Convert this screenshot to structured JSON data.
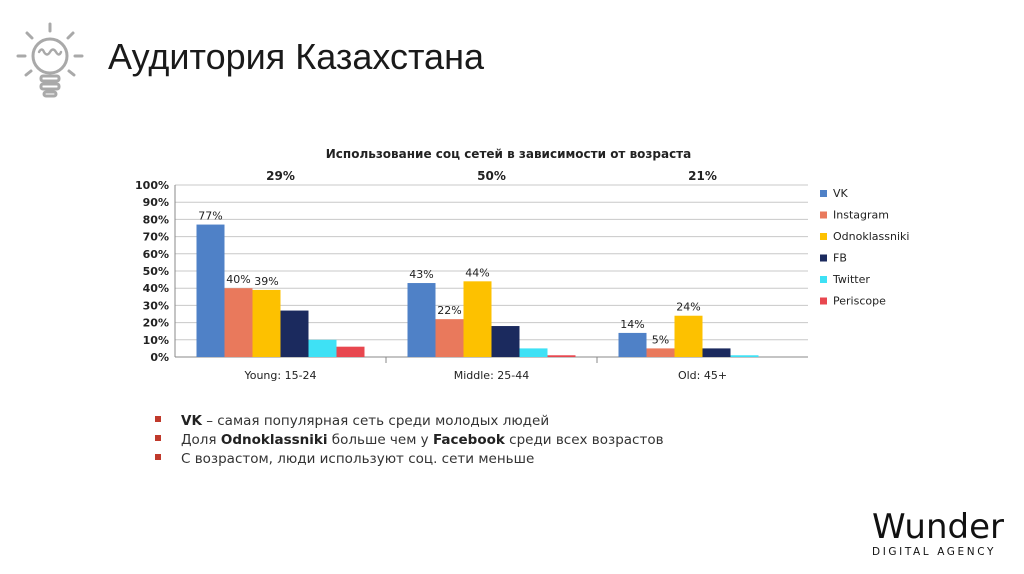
{
  "slide": {
    "title": "Аудитория Казахстана",
    "brand_name": "Wunder",
    "brand_sub": "DIGITAL AGENCY"
  },
  "chart_data": {
    "type": "bar",
    "title": "Использование соц сетей в зависимости от возраста",
    "categories": [
      "Young: 15-24",
      "Middle: 25-44",
      "Old: 45+"
    ],
    "group_share": [
      "29%",
      "50%",
      "21%"
    ],
    "series": [
      {
        "name": "VK",
        "color": "#4f81c7",
        "values": [
          77,
          43,
          14
        ],
        "labels": [
          "77%",
          "43%",
          "14%"
        ]
      },
      {
        "name": "Instagram",
        "color": "#e9795c",
        "values": [
          40,
          22,
          5
        ],
        "labels": [
          "40%",
          "22%",
          "5%"
        ]
      },
      {
        "name": "Odnoklassniki",
        "color": "#fdc100",
        "values": [
          39,
          44,
          24
        ],
        "labels": [
          "39%",
          "44%",
          "24%"
        ]
      },
      {
        "name": "FB",
        "color": "#1b2a5e",
        "values": [
          27,
          18,
          5
        ],
        "labels": [
          "",
          "",
          ""
        ]
      },
      {
        "name": "Twitter",
        "color": "#3ee1f5",
        "values": [
          10,
          5,
          1
        ],
        "labels": [
          "",
          "",
          ""
        ]
      },
      {
        "name": "Periscope",
        "color": "#e8474f",
        "values": [
          6,
          1,
          0
        ],
        "labels": [
          "",
          "",
          ""
        ]
      }
    ],
    "yticks": [
      "0%",
      "10%",
      "20%",
      "30%",
      "40%",
      "50%",
      "60%",
      "70%",
      "80%",
      "90%",
      "100%"
    ],
    "ylim": [
      0,
      100
    ],
    "legend": "right"
  },
  "notes": [
    {
      "parts": [
        {
          "b": true,
          "t": "VK"
        },
        {
          "b": false,
          "t": " – самая популярная сеть среди молодых людей"
        }
      ]
    },
    {
      "parts": [
        {
          "b": false,
          "t": "Доля "
        },
        {
          "b": true,
          "t": "Odnoklassniki"
        },
        {
          "b": false,
          "t": " больше чем у "
        },
        {
          "b": true,
          "t": "Facebook"
        },
        {
          "b": false,
          "t": " среди всех возрастов"
        }
      ]
    },
    {
      "parts": [
        {
          "b": false,
          "t": "С возрастом, люди используют соц. сети меньше"
        }
      ]
    }
  ]
}
